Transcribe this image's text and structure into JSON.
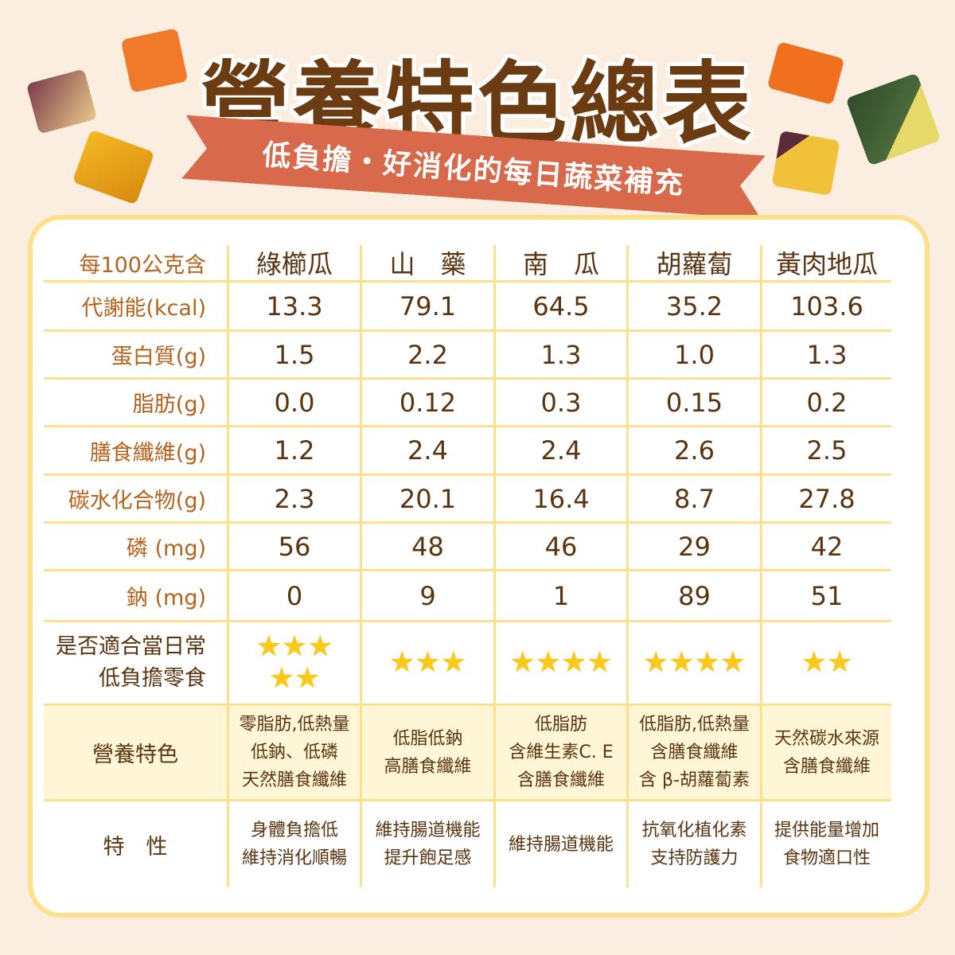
{
  "title": "營養特色總表",
  "subtitle": "低負擔・好消化的每日蔬菜補充",
  "colors": {
    "title": "#6b3b12",
    "banner": "#d8694a",
    "border": "#fde08a",
    "label": "#b5621d",
    "value": "#5a3410",
    "star": "#fbc91a"
  },
  "table": {
    "corner": "每100公克含",
    "columns": [
      "綠櫛瓜",
      "山　藥",
      "南　瓜",
      "胡蘿蔔",
      "黃肉地瓜"
    ],
    "rows": [
      {
        "label": "代謝能(kcal)",
        "values": [
          "13.3",
          "79.1",
          "64.5",
          "35.2",
          "103.6"
        ]
      },
      {
        "label": "蛋白質(g)",
        "values": [
          "1.5",
          "2.2",
          "1.3",
          "1.0",
          "1.3"
        ]
      },
      {
        "label": "脂肪(g)",
        "values": [
          "0.0",
          "0.12",
          "0.3",
          "0.15",
          "0.2"
        ]
      },
      {
        "label": "膳食纖維(g)",
        "values": [
          "1.2",
          "2.4",
          "2.4",
          "2.6",
          "2.5"
        ]
      },
      {
        "label": "碳水化合物(g)",
        "values": [
          "2.3",
          "20.1",
          "16.4",
          "8.7",
          "27.8"
        ]
      },
      {
        "label": "磷 (mg)",
        "values": [
          "56",
          "48",
          "46",
          "29",
          "42"
        ]
      },
      {
        "label": "鈉 (mg)",
        "values": [
          "0",
          "9",
          "1",
          "89",
          "51"
        ]
      }
    ],
    "rating": {
      "label": "是否適合當日常\n低負擔零食",
      "stars": [
        5,
        3,
        4,
        4,
        2
      ],
      "star_text": [
        "★★★\n★★",
        "★★★",
        "★★★★",
        "★★★★",
        "★★"
      ]
    },
    "features": {
      "label": "營養特色",
      "values": [
        "零脂肪,低熱量\n低鈉、低磷\n天然膳食纖維",
        "低脂低鈉\n高膳食纖維",
        "低脂肪\n含維生素C. E\n含膳食纖維",
        "低脂肪,低熱量\n含膳食纖維\n含 β-胡蘿蔔素",
        "天然碳水來源\n含膳食纖維"
      ]
    },
    "traits": {
      "label": "特　性",
      "values": [
        "身體負擔低\n維持消化順暢",
        "維持腸道機能\n提升飽足感",
        "維持腸道機能",
        "抗氧化植化素\n支持防護力",
        "提供能量增加\n食物適口性"
      ]
    }
  }
}
